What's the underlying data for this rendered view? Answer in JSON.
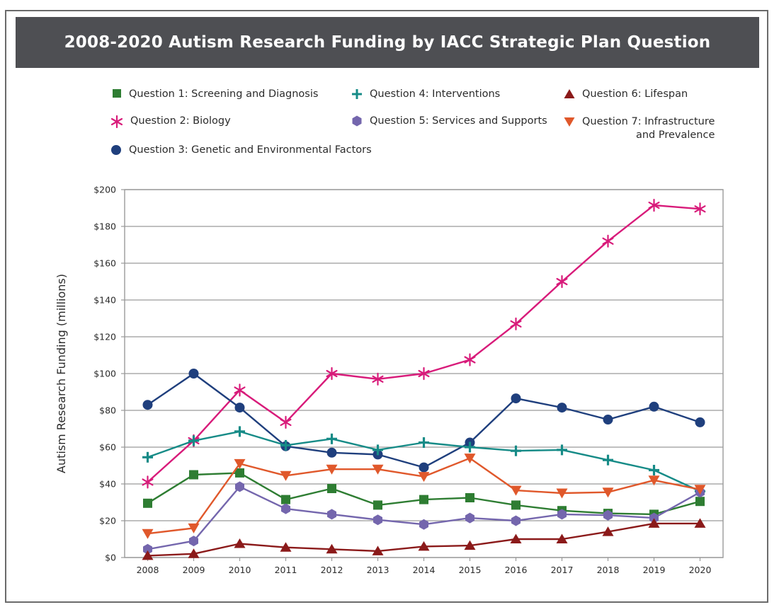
{
  "title": "2008-2020 Autism Research Funding by IACC Strategic Plan Question",
  "colors": {
    "q1": "#2e7d32",
    "q2": "#d81b7a",
    "q3": "#1f3f7d",
    "q4": "#168b87",
    "q5": "#7466ad",
    "q6": "#8b1a1a",
    "q7": "#e0582b",
    "title_bg": "#4e4f53",
    "grid": "#9a9a9a"
  },
  "legend": [
    {
      "key": "q1",
      "marker": "square",
      "label": "Question 1: Screening and Diagnosis"
    },
    {
      "key": "q2",
      "marker": "asterisk",
      "label": "Question 2: Biology"
    },
    {
      "key": "q3",
      "marker": "circle",
      "label": "Question 3: Genetic and Environmental Factors"
    },
    {
      "key": "q4",
      "marker": "plus",
      "label": "Question 4: Interventions"
    },
    {
      "key": "q5",
      "marker": "hexagon",
      "label": "Question 5: Services and Supports"
    },
    {
      "key": "q6",
      "marker": "triangle-up",
      "label": "Question 6: Lifespan"
    },
    {
      "key": "q7",
      "marker": "triangle-down",
      "label_line1": "Question 7: Infrastructure",
      "label_line2": "and Prevalence"
    }
  ],
  "chart_data": {
    "type": "line",
    "title": "2008-2020 Autism Research Funding by IACC Strategic Plan Question",
    "xlabel": "",
    "ylabel": "Autism Research Funding (millions)",
    "x": [
      "2008",
      "2009",
      "2010",
      "2011",
      "2012",
      "2013",
      "2014",
      "2015",
      "2016",
      "2017",
      "2018",
      "2019",
      "2020"
    ],
    "yticks": [
      "$0",
      "$20",
      "$40",
      "$60",
      "$80",
      "$100",
      "$120",
      "$140",
      "$160",
      "$180",
      "$200"
    ],
    "ylim": [
      0,
      200
    ],
    "grid": "horizontal",
    "legend_position": "top",
    "series": [
      {
        "key": "q1",
        "name": "Question 1: Screening and Diagnosis",
        "marker": "square",
        "values": [
          29.5,
          45,
          46,
          31.5,
          37.5,
          28.5,
          31.5,
          32.5,
          28.5,
          25.5,
          24,
          23.5,
          30.5
        ]
      },
      {
        "key": "q2",
        "name": "Question 2: Biology",
        "marker": "asterisk",
        "values": [
          41,
          63.5,
          91,
          73.5,
          100,
          97,
          100,
          107.5,
          127,
          150,
          172,
          191.5,
          189.5
        ]
      },
      {
        "key": "q3",
        "name": "Question 3: Genetic and Environmental Factors",
        "marker": "circle",
        "values": [
          83,
          100,
          81.5,
          60.5,
          57,
          56,
          49,
          62.5,
          86.5,
          81.5,
          75,
          82,
          73.5
        ]
      },
      {
        "key": "q4",
        "name": "Question 4: Interventions",
        "marker": "plus",
        "values": [
          54.5,
          63.5,
          68.5,
          61,
          64.5,
          58.5,
          62.5,
          60,
          58,
          58.5,
          53,
          47.5,
          36
        ]
      },
      {
        "key": "q5",
        "name": "Question 5: Services and Supports",
        "marker": "hexagon",
        "values": [
          4.5,
          9,
          38.5,
          26.5,
          23.5,
          20.5,
          18,
          21.5,
          20,
          23.5,
          23,
          21.5,
          35.5
        ]
      },
      {
        "key": "q6",
        "name": "Question 6: Lifespan",
        "marker": "triangle-up",
        "values": [
          1,
          2,
          7.5,
          5.5,
          4.5,
          3.5,
          6,
          6.5,
          10,
          10,
          14,
          18.5,
          18.5
        ]
      },
      {
        "key": "q7",
        "name": "Question 7: Infrastructure and Prevalence",
        "marker": "triangle-down",
        "values": [
          13,
          16,
          51,
          44.5,
          48,
          48,
          44,
          54,
          36.5,
          35,
          35.5,
          42,
          37
        ]
      }
    ]
  }
}
